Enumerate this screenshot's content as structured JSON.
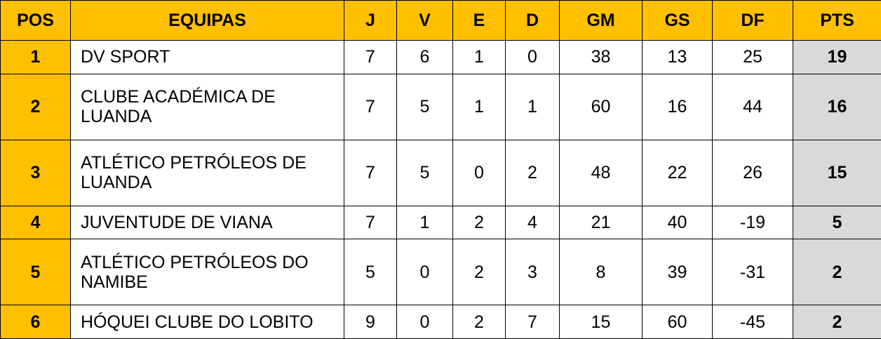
{
  "table": {
    "header": [
      "POS",
      "EQUIPAS",
      "J",
      "V",
      "E",
      "D",
      "GM",
      "GS",
      "DF",
      "PTS"
    ],
    "rows": [
      [
        1,
        "DV SPORT",
        7,
        6,
        1,
        0,
        38,
        13,
        25,
        19
      ],
      [
        2,
        "CLUBE ACADÉMICA DE LUANDA",
        7,
        5,
        1,
        1,
        60,
        16,
        44,
        16
      ],
      [
        3,
        "ATLÉTICO PETRÓLEOS DE LUANDA",
        7,
        5,
        0,
        2,
        48,
        22,
        26,
        15
      ],
      [
        4,
        "JUVENTUDE DE VIANA",
        7,
        1,
        2,
        4,
        21,
        40,
        -19,
        5
      ],
      [
        5,
        "ATLÉTICO PETRÓLEOS DO NAMIBE",
        5,
        0,
        2,
        3,
        8,
        39,
        -31,
        2
      ],
      [
        6,
        "HÓQUEI CLUBE DO LOBITO",
        9,
        0,
        2,
        7,
        15,
        60,
        -45,
        2
      ]
    ]
  }
}
